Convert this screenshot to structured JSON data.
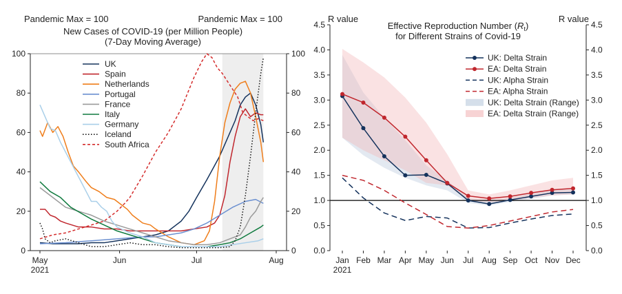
{
  "chart_data": [
    {
      "type": "line",
      "title_line1": "New Cases of COVID-19 (per Million People)",
      "title_line2": "(7-Day Moving Average)",
      "left_note": "Pandemic Max = 100",
      "right_note": "Pandemic Max = 100",
      "ylim": [
        0,
        100
      ],
      "yticks": [
        "0",
        "20",
        "40",
        "60",
        "80",
        "100"
      ],
      "yticks_right": [
        "0",
        "20",
        "40",
        "60",
        "80",
        "100"
      ],
      "xlim": [
        0,
        92
      ],
      "xticks": [
        {
          "pos": 0,
          "label": "May",
          "label2": "2021"
        },
        {
          "pos": 31,
          "label": "Jun",
          "label2": ""
        },
        {
          "pos": 61,
          "label": "Jul",
          "label2": ""
        },
        {
          "pos": 92,
          "label": "Aug",
          "label2": ""
        }
      ],
      "shaded_region": [
        71,
        87
      ],
      "reference_line": 100,
      "legend_position": "upper-left",
      "series": [
        {
          "name": "UK",
          "color": "#14325c",
          "dash": "",
          "x": [
            0,
            5,
            10,
            15,
            20,
            25,
            30,
            35,
            40,
            45,
            50,
            55,
            58,
            61,
            65,
            70,
            74,
            76,
            78,
            80,
            82,
            84,
            86,
            87
          ],
          "y": [
            4,
            3.5,
            3.5,
            3.5,
            4,
            4,
            5,
            6,
            7,
            8,
            10,
            15,
            20,
            27,
            36,
            48,
            60,
            66,
            74,
            78,
            80,
            74,
            64,
            55
          ]
        },
        {
          "name": "Spain",
          "color": "#c0262d",
          "dash": "",
          "x": [
            0,
            2,
            4,
            6,
            8,
            10,
            15,
            20,
            25,
            30,
            35,
            40,
            45,
            50,
            55,
            60,
            65,
            68,
            70,
            72,
            74,
            76,
            78,
            80,
            82,
            84,
            86,
            87
          ],
          "y": [
            21,
            21,
            18,
            17,
            15,
            14,
            12,
            12,
            11,
            11,
            10,
            10,
            10,
            10,
            10,
            11,
            12,
            14,
            18,
            28,
            45,
            58,
            68,
            72,
            68,
            70,
            69,
            69
          ]
        },
        {
          "name": "Netherlands",
          "color": "#ef7d1a",
          "dash": "",
          "x": [
            0,
            1,
            3,
            5,
            7,
            9,
            11,
            13,
            15,
            18,
            20,
            23,
            26,
            29,
            31,
            34,
            36,
            38,
            40,
            43,
            45,
            50,
            55,
            60,
            64,
            66,
            68,
            70,
            72,
            74,
            76,
            78,
            80,
            82,
            84,
            86,
            87
          ],
          "y": [
            61,
            58,
            65,
            60,
            63,
            58,
            50,
            43,
            40,
            35,
            32,
            30,
            27,
            26,
            24,
            21,
            18,
            16,
            14,
            13,
            11,
            7,
            4,
            3,
            5,
            10,
            25,
            48,
            65,
            75,
            82,
            85,
            86,
            80,
            68,
            55,
            45
          ]
        },
        {
          "name": "Portugal",
          "color": "#6a8fd0",
          "dash": "",
          "x": [
            0,
            10,
            20,
            30,
            40,
            45,
            50,
            55,
            60,
            65,
            70,
            75,
            80,
            84,
            87
          ],
          "y": [
            3.5,
            4,
            5,
            6,
            7,
            7,
            8,
            9,
            11,
            14,
            18,
            22,
            25,
            26,
            24
          ]
        },
        {
          "name": "France",
          "color": "#9a9a9a",
          "dash": "",
          "x": [
            0,
            5,
            10,
            15,
            20,
            25,
            30,
            35,
            40,
            45,
            50,
            55,
            60,
            65,
            70,
            74,
            78,
            80,
            82,
            84,
            86,
            87
          ],
          "y": [
            32,
            27,
            22,
            20,
            18,
            15,
            13,
            11,
            9,
            7,
            5,
            4,
            3,
            3,
            4,
            6,
            8,
            12,
            17,
            20,
            25,
            27
          ]
        },
        {
          "name": "Italy",
          "color": "#0f7a3e",
          "dash": "",
          "x": [
            0,
            4,
            8,
            12,
            16,
            20,
            25,
            30,
            35,
            40,
            45,
            50,
            55,
            60,
            65,
            70,
            74,
            78,
            82,
            86,
            87
          ],
          "y": [
            35,
            30,
            27,
            22,
            19,
            16,
            13,
            10,
            8,
            6,
            4,
            3,
            2,
            2,
            2,
            3,
            4,
            6,
            9,
            12,
            13
          ]
        },
        {
          "name": "Germany",
          "color": "#a9cfe9",
          "dash": "",
          "x": [
            0,
            2,
            4,
            6,
            8,
            10,
            12,
            14,
            16,
            18,
            20,
            22,
            24,
            26,
            28,
            30,
            35,
            40,
            45,
            50,
            55,
            60,
            65,
            70,
            75,
            80,
            85,
            87
          ],
          "y": [
            74,
            68,
            62,
            61,
            55,
            50,
            45,
            40,
            35,
            30,
            25,
            25,
            22,
            20,
            15,
            12,
            9,
            7,
            4,
            3,
            2,
            2,
            2,
            2,
            3,
            4,
            5,
            6
          ]
        },
        {
          "name": "Iceland",
          "color": "#111111",
          "dash": "1.5,2.5",
          "x": [
            0,
            1,
            2,
            4,
            6,
            10,
            15,
            20,
            25,
            30,
            35,
            40,
            45,
            50,
            55,
            60,
            65,
            70,
            74,
            76,
            78,
            80,
            82,
            84,
            86,
            87
          ],
          "y": [
            14,
            11,
            6,
            4,
            5,
            6,
            4,
            2,
            2,
            3,
            4,
            3,
            3,
            2,
            1.5,
            1.5,
            1.5,
            1.5,
            2,
            5,
            12,
            28,
            48,
            70,
            90,
            98
          ]
        },
        {
          "name": "South Africa",
          "color": "#d42b2b",
          "dash": "4,3",
          "x": [
            0,
            5,
            10,
            15,
            20,
            25,
            30,
            33,
            35,
            40,
            45,
            50,
            55,
            60,
            63,
            65,
            67,
            69,
            71,
            73,
            75,
            77,
            79,
            81,
            83,
            85,
            87
          ],
          "y": [
            6,
            8,
            9,
            11,
            13,
            15,
            20,
            24,
            27,
            38,
            50,
            60,
            72,
            88,
            96,
            100,
            98,
            93,
            90,
            86,
            82,
            78,
            70,
            68,
            66,
            67,
            66
          ]
        }
      ]
    },
    {
      "type": "line",
      "title_line1": "Effective Reproduction Number (",
      "title_symbol": "R",
      "title_subscript": "t",
      "title_close": ")",
      "title_line2": "for Different Strains of Covid-19",
      "left_ylabel": "R value",
      "right_ylabel": "R value",
      "ylim": [
        0,
        4.5
      ],
      "yticks": [
        "0.0",
        "0.5",
        "1.0",
        "1.5",
        "2.0",
        "2.5",
        "3.0",
        "3.5",
        "4.0",
        "4.5"
      ],
      "yticks_right": [
        "0.0",
        "0.5",
        "1.0",
        "1.5",
        "2.0",
        "2.5",
        "3.0",
        "3.5",
        "4.0",
        "4.5"
      ],
      "categories": [
        "Jan",
        "Feb",
        "Mar",
        "Apr",
        "May",
        "Jun",
        "Jul",
        "Aug",
        "Sep",
        "Oct",
        "Nov",
        "Dec"
      ],
      "first_category_year": "2021",
      "reference_line": 1.0,
      "legend_position": "upper-right",
      "series": [
        {
          "name": "UK: Delta Strain",
          "color": "#14325c",
          "dash": "",
          "marker": true,
          "values": [
            3.08,
            2.44,
            1.88,
            1.5,
            1.51,
            1.34,
            1.0,
            0.93,
            1.01,
            1.08,
            1.15,
            1.16
          ]
        },
        {
          "name": "EA: Delta Strain",
          "color": "#c0262d",
          "dash": "",
          "marker": true,
          "values": [
            3.12,
            2.95,
            2.65,
            2.27,
            1.8,
            1.35,
            1.09,
            1.04,
            1.08,
            1.15,
            1.21,
            1.24
          ]
        },
        {
          "name": "UK: Alpha Strain",
          "color": "#14325c",
          "dash": "8,5",
          "marker": false,
          "values": [
            1.45,
            1.05,
            0.75,
            0.6,
            0.68,
            0.65,
            0.45,
            0.46,
            0.55,
            0.63,
            0.7,
            0.73
          ]
        },
        {
          "name": "EA: Alpha Strain",
          "color": "#c0262d",
          "dash": "8,5",
          "marker": false,
          "values": [
            1.5,
            1.4,
            1.2,
            0.95,
            0.72,
            0.48,
            0.45,
            0.5,
            0.59,
            0.68,
            0.77,
            0.82
          ]
        }
      ],
      "bands": [
        {
          "name": "UK: Delta Strain (Range)",
          "color": "#b9c9dc",
          "opacity": 0.4,
          "lower": [
            2.25,
            1.9,
            1.65,
            1.45,
            1.3,
            1.2,
            0.95,
            0.9,
            0.97,
            1.03,
            1.1,
            1.12
          ],
          "upper": [
            3.9,
            3.15,
            2.65,
            2.2,
            1.7,
            1.4,
            1.05,
            0.98,
            1.06,
            1.13,
            1.21,
            1.22
          ]
        },
        {
          "name": "EA: Delta Strain (Range)",
          "color": "#f2b6b8",
          "opacity": 0.4,
          "lower": [
            2.25,
            2.0,
            1.8,
            1.6,
            1.35,
            1.3,
            1.0,
            0.96,
            1.0,
            1.05,
            1.1,
            1.12
          ],
          "upper": [
            4.02,
            3.75,
            3.45,
            3.05,
            2.55,
            1.92,
            1.2,
            1.12,
            1.2,
            1.3,
            1.4,
            1.45
          ]
        }
      ]
    }
  ]
}
